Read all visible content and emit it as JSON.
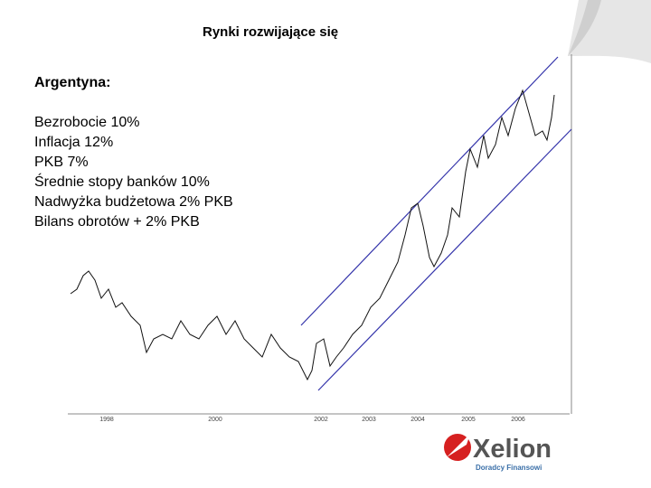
{
  "header": {
    "title": "Rynki rozwijające się"
  },
  "section": {
    "heading": "Argentyna:",
    "items": [
      "Bezrobocie 10%",
      "Inflacja 12%",
      "PKB 7%",
      "Średnie stopy banków 10%",
      "Nadwyżka budżetowa 2% PKB",
      "Bilans obrotów + 2% PKB"
    ]
  },
  "chart_axis": {
    "years": [
      "1998",
      "2000",
      "2002",
      "2003",
      "2004",
      "2005",
      "2006"
    ]
  },
  "logo": {
    "name": "Xelion",
    "tagline": "Doradcy Finansowi"
  }
}
